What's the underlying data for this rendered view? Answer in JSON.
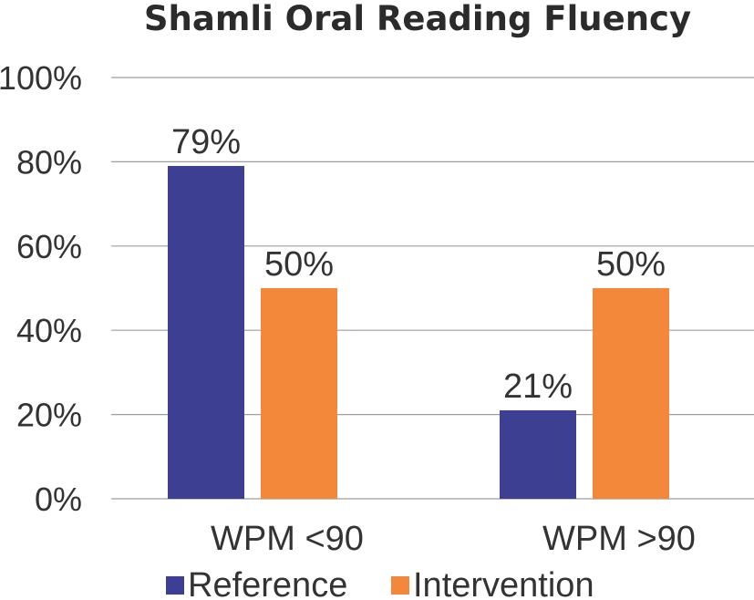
{
  "chart_data": {
    "type": "bar",
    "title": "Shamli Oral Reading Fluency",
    "categories": [
      "WPM <90",
      "WPM >90"
    ],
    "series": [
      {
        "name": "Reference",
        "values": [
          79,
          21
        ],
        "labels": [
          "79%",
          "21%"
        ],
        "color": "#3d3f92"
      },
      {
        "name": "Intervention",
        "values": [
          50,
          50
        ],
        "labels": [
          "50%",
          "50%"
        ],
        "color": "#f3873a"
      }
    ],
    "ylim": [
      0,
      100
    ],
    "yticks": [
      0,
      20,
      40,
      60,
      80,
      100
    ],
    "ytick_labels": [
      "0%",
      "20%",
      "40%",
      "60%",
      "80%",
      "100%"
    ],
    "grid": true,
    "legend_position": "bottom"
  }
}
